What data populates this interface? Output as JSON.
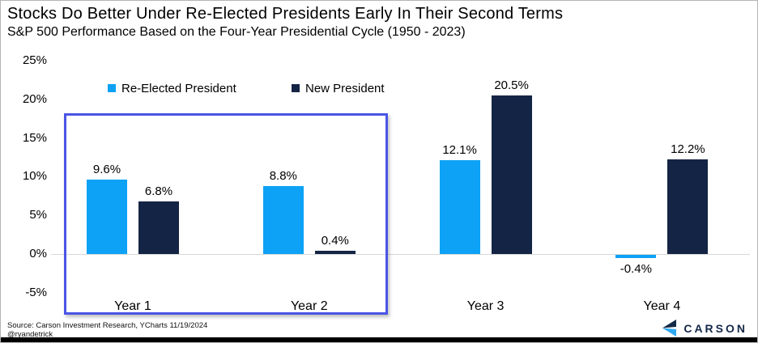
{
  "header": {
    "title": "Stocks Do Better Under Re-Elected Presidents Early In Their Second Terms",
    "subtitle": "S&P 500 Performance Based on the Four-Year Presidential Cycle (1950 - 2023)"
  },
  "chart_data": {
    "type": "bar",
    "title": "Stocks Do Better Under Re-Elected Presidents Early In Their Second Terms",
    "subtitle": "S&P 500 Performance Based on the Four-Year Presidential Cycle (1950 - 2023)",
    "categories": [
      "Year 1",
      "Year 2",
      "Year 3",
      "Year 4"
    ],
    "series": [
      {
        "name": "Re-Elected President",
        "color": "#0da2f5",
        "values": [
          9.6,
          8.8,
          12.1,
          -0.4
        ],
        "labels": [
          "9.6%",
          "8.8%",
          "12.1%",
          "-0.4%"
        ]
      },
      {
        "name": "New President",
        "color": "#142444",
        "values": [
          6.8,
          0.4,
          20.5,
          12.2
        ],
        "labels": [
          "6.8%",
          "0.4%",
          "20.5%",
          "12.2%"
        ]
      }
    ],
    "y_ticks": [
      "25%",
      "20%",
      "15%",
      "10%",
      "5%",
      "0%",
      "-5%"
    ],
    "y_tick_values": [
      25,
      20,
      15,
      10,
      5,
      0,
      -5
    ],
    "ylim": [
      -7.5,
      27
    ],
    "xlabel": "",
    "ylabel": "",
    "grid": "zero-line-only",
    "legend_position": "top-left-inside",
    "highlight": {
      "note": "box around Year 1 and Year 2",
      "color": "#4a55e6"
    }
  },
  "footer": {
    "source_line1": "Source: Carson Investment Research, YCharts 11/19/2024",
    "source_line2": "@ryandetrick",
    "brand": "CARSON"
  },
  "colors": {
    "reelected_blue": "#0da2f5",
    "new_president_navy": "#142444",
    "highlight_border": "#4a55e6",
    "axis_line": "#d9d9d9"
  }
}
